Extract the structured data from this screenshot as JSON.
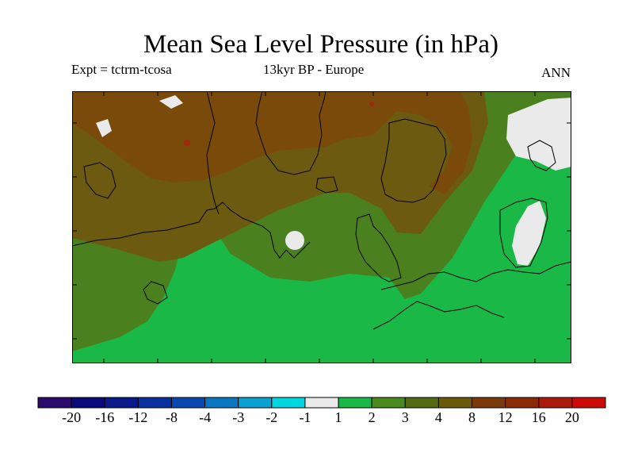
{
  "title": "Mean Sea Level Pressure (in hPa)",
  "subtitle_left": "Expt = tctrm-tcosa",
  "subtitle_center": "13kyr BP - Europe",
  "subtitle_right": "ANN",
  "colorbar": {
    "colors": [
      "#2a0a6a",
      "#0a0a7a",
      "#0a1a8a",
      "#0a30a0",
      "#0a48b0",
      "#0a78c0",
      "#0aa0d0",
      "#00d6e0",
      "#eaeaea",
      "#1ab846",
      "#4a8a1e",
      "#556b12",
      "#6b5a0a",
      "#7a3a0a",
      "#8a2a08",
      "#aa1a0a",
      "#cc0a0a"
    ],
    "labels": [
      "-20",
      "-16",
      "-12",
      "-8",
      "-4",
      "-3",
      "-2",
      "-1",
      "1",
      "2",
      "3",
      "4",
      "8",
      "12",
      "16",
      "20"
    ]
  },
  "map_colors": {
    "strong": "#7a4a0a",
    "medium": "#6b5a10",
    "weak": "#4a801e",
    "green": "#1ab846",
    "white": "#eaeaea",
    "peak": "#9a2a08",
    "coast": "#000000"
  }
}
